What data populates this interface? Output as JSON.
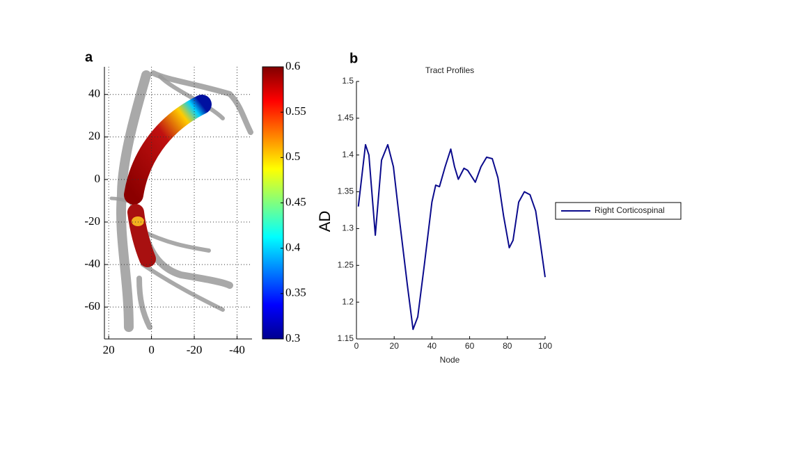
{
  "chart_data": [
    {
      "type": "image",
      "panel_label": "a",
      "xlim": [
        22,
        -47
      ],
      "xticks": [
        20,
        0,
        -20,
        -40
      ],
      "ylim": [
        -75,
        53
      ],
      "yticks": [
        40,
        20,
        0,
        -20,
        -40,
        -60
      ],
      "grid": true,
      "colorbar": {
        "lim": [
          0.3,
          0.6
        ],
        "ticks": [
          0.3,
          0.35,
          0.4,
          0.45,
          0.5,
          0.55,
          0.6
        ],
        "colormap": "jet"
      }
    },
    {
      "type": "line",
      "panel_label": "b",
      "title": "Tract Profiles",
      "xlabel": "Node",
      "ylabel": "AD",
      "xlim": [
        0,
        100
      ],
      "xticks": [
        0,
        20,
        40,
        60,
        80,
        100
      ],
      "ylim": [
        1.15,
        1.5
      ],
      "yticks": [
        1.15,
        1.2,
        1.25,
        1.3,
        1.35,
        1.4,
        1.45,
        1.5
      ],
      "legend": "outside-right",
      "series": [
        {
          "name": "Right Corticospinal",
          "color": "#0a0a8c",
          "x": [
            1,
            4.8,
            6.6,
            10,
            13.3,
            16.6,
            19.6,
            23,
            27,
            30,
            32.5,
            36,
            40,
            42,
            44,
            47,
            50,
            52,
            54,
            57,
            59,
            63,
            66,
            69,
            72,
            75,
            78,
            81,
            83,
            86,
            89,
            92,
            95,
            97,
            100
          ],
          "values": [
            1.33,
            1.414,
            1.4,
            1.291,
            1.393,
            1.414,
            1.384,
            1.308,
            1.223,
            1.163,
            1.18,
            1.251,
            1.336,
            1.359,
            1.357,
            1.384,
            1.408,
            1.384,
            1.367,
            1.382,
            1.379,
            1.363,
            1.384,
            1.397,
            1.395,
            1.369,
            1.317,
            1.274,
            1.284,
            1.336,
            1.35,
            1.346,
            1.324,
            1.289,
            1.234
          ]
        }
      ]
    }
  ]
}
